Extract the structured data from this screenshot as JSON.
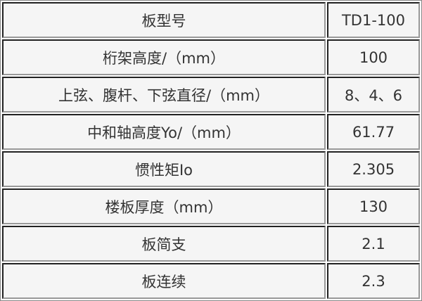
{
  "rows": [
    {
      "label": "板型号",
      "value": "TD1-100"
    },
    {
      "label": "桁架高度/（mm）",
      "value": "100"
    },
    {
      "label": "上弦、腹杆、下弦直径/（mm）",
      "value": "8、4、6"
    },
    {
      "label": "中和轴高度Yo/（mm）",
      "value": "61.77"
    },
    {
      "label": "惯性矩Io",
      "value": "2.305"
    },
    {
      "label": "楼板厚度（mm）",
      "value": "130"
    },
    {
      "label": "板简支",
      "value": "2.1"
    },
    {
      "label": "板连续",
      "value": "2.3"
    }
  ]
}
